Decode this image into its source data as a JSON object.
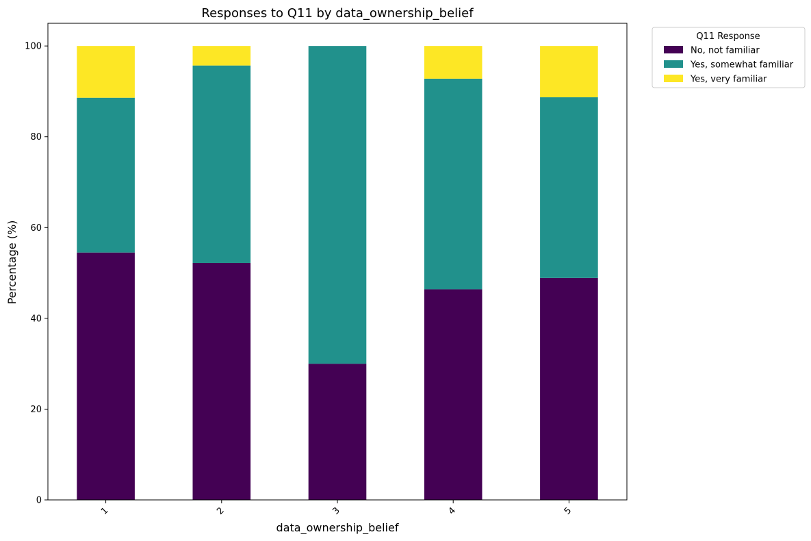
{
  "chart_data": {
    "type": "bar",
    "stacked": true,
    "title": "Responses to Q11 by data_ownership_belief",
    "xlabel": "data_ownership_belief",
    "ylabel": "Percentage (%)",
    "ylim": [
      0,
      105
    ],
    "yticks": [
      0,
      20,
      40,
      60,
      80,
      100
    ],
    "categories": [
      "1",
      "2",
      "3",
      "4",
      "5"
    ],
    "legend": {
      "title": "Q11 Response",
      "position": "outside-top-right"
    },
    "grid": false,
    "series": [
      {
        "name": "No, not familiar",
        "color": "#440154",
        "values": [
          54.5,
          52.2,
          30.0,
          46.4,
          48.9
        ]
      },
      {
        "name": "Yes, somewhat familiar",
        "color": "#21918c",
        "values": [
          34.1,
          43.5,
          70.0,
          46.4,
          39.8
        ]
      },
      {
        "name": "Yes, very familiar",
        "color": "#fde725",
        "values": [
          11.4,
          4.3,
          0.0,
          7.2,
          11.3
        ]
      }
    ]
  }
}
